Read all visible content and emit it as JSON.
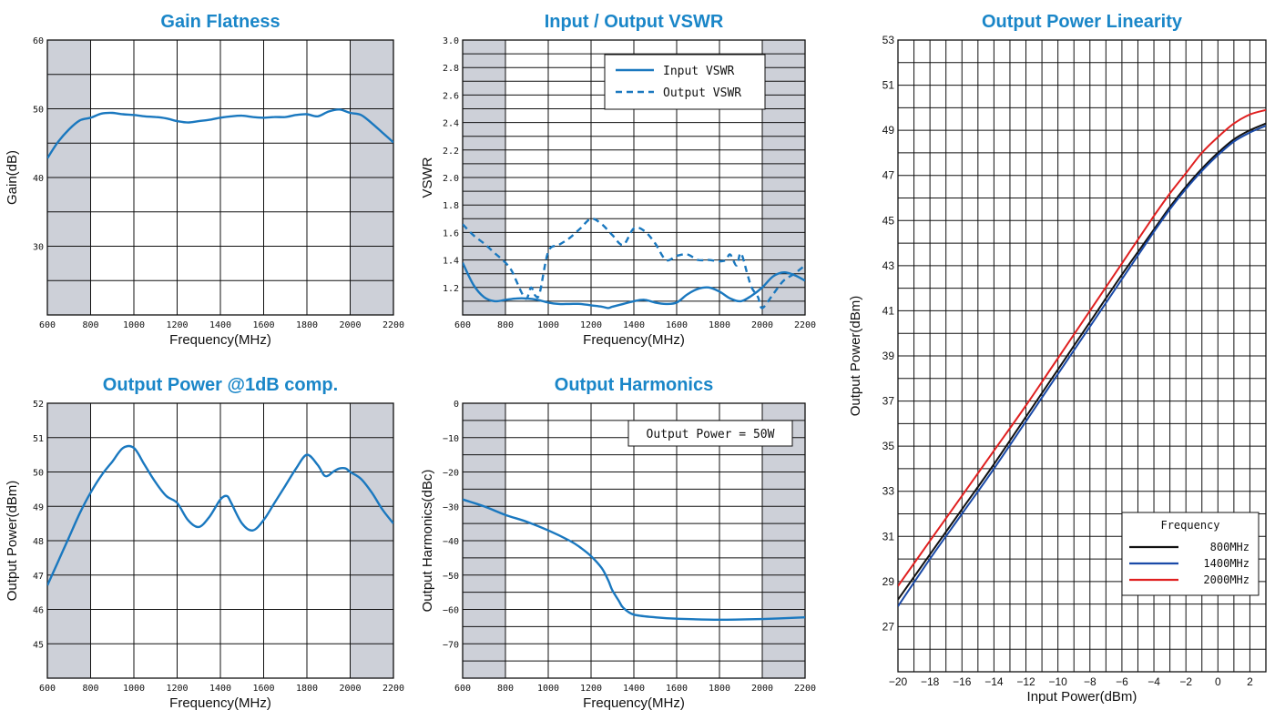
{
  "chart_data": [
    {
      "id": "gain",
      "type": "line",
      "title": "Gain Flatness",
      "xlabel": "Frequency(MHz)",
      "ylabel": "Gain(dB)",
      "xlim": [
        600,
        2200
      ],
      "ylim": [
        20,
        60
      ],
      "xticks": [
        600,
        800,
        1000,
        1200,
        1400,
        1600,
        1800,
        2000,
        2200
      ],
      "yticks": [
        30,
        40,
        50,
        60
      ],
      "shaded": [
        [
          600,
          800
        ],
        [
          2000,
          2200
        ]
      ],
      "series": [
        {
          "style": "solid",
          "color": "#1a78bf",
          "x": [
            600,
            650,
            700,
            750,
            800,
            850,
            900,
            950,
            1000,
            1050,
            1100,
            1150,
            1200,
            1250,
            1300,
            1350,
            1400,
            1450,
            1500,
            1550,
            1600,
            1650,
            1700,
            1750,
            1800,
            1850,
            1900,
            1950,
            2000,
            2050,
            2100,
            2150,
            2200
          ],
          "y": [
            42.8,
            45.2,
            47.0,
            48.3,
            48.7,
            49.3,
            49.4,
            49.2,
            49.1,
            48.9,
            48.8,
            48.6,
            48.2,
            48.0,
            48.2,
            48.4,
            48.7,
            48.9,
            49.0,
            48.8,
            48.7,
            48.8,
            48.8,
            49.1,
            49.2,
            48.9,
            49.6,
            49.9,
            49.4,
            49.1,
            47.9,
            46.5,
            45.1
          ]
        }
      ]
    },
    {
      "id": "vswr",
      "type": "line",
      "title": "Input / Output VSWR",
      "xlabel": "Frequency(MHz)",
      "ylabel": "VSWR",
      "xlim": [
        600,
        2200
      ],
      "ylim": [
        1.0,
        3.0
      ],
      "xticks": [
        600,
        800,
        1000,
        1200,
        1400,
        1600,
        1800,
        2000,
        2200
      ],
      "yticks": [
        1.2,
        1.4,
        1.6,
        1.8,
        2.0,
        2.2,
        2.4,
        2.6,
        2.8,
        3.0
      ],
      "ytick_labels": [
        "1.2",
        "1.4",
        "1.6",
        "1.8",
        "2.0",
        "2.2",
        "2.4",
        "2.6",
        "2.8",
        "3.0"
      ],
      "shaded": [
        [
          600,
          800
        ],
        [
          2000,
          2200
        ]
      ],
      "legend": {
        "position": "top-right",
        "entries": [
          "Input VSWR",
          "Output VSWR"
        ]
      },
      "series": [
        {
          "name": "Input VSWR",
          "style": "solid",
          "color": "#1a78bf",
          "x": [
            600,
            650,
            700,
            750,
            800,
            850,
            900,
            950,
            1000,
            1050,
            1100,
            1150,
            1200,
            1250,
            1280,
            1300,
            1350,
            1400,
            1450,
            1500,
            1550,
            1600,
            1650,
            1700,
            1750,
            1800,
            1850,
            1900,
            1950,
            2000,
            2050,
            2100,
            2150,
            2200
          ],
          "y": [
            1.38,
            1.22,
            1.13,
            1.1,
            1.11,
            1.12,
            1.12,
            1.11,
            1.09,
            1.08,
            1.08,
            1.08,
            1.07,
            1.06,
            1.05,
            1.06,
            1.08,
            1.1,
            1.11,
            1.09,
            1.08,
            1.09,
            1.15,
            1.19,
            1.2,
            1.17,
            1.12,
            1.1,
            1.14,
            1.2,
            1.28,
            1.31,
            1.29,
            1.25
          ]
        },
        {
          "name": "Output VSWR",
          "style": "dashed",
          "color": "#1a78bf",
          "x": [
            600,
            650,
            700,
            750,
            800,
            830,
            850,
            880,
            900,
            920,
            940,
            960,
            1000,
            1050,
            1100,
            1150,
            1200,
            1250,
            1300,
            1350,
            1400,
            1450,
            1500,
            1550,
            1600,
            1650,
            1700,
            1750,
            1800,
            1830,
            1850,
            1880,
            1900,
            1930,
            1950,
            1980,
            2000,
            2050,
            2100,
            2150,
            2200
          ],
          "y": [
            1.66,
            1.58,
            1.52,
            1.45,
            1.38,
            1.32,
            1.25,
            1.15,
            1.12,
            1.2,
            1.14,
            1.16,
            1.46,
            1.51,
            1.56,
            1.63,
            1.7,
            1.66,
            1.58,
            1.51,
            1.63,
            1.61,
            1.52,
            1.4,
            1.43,
            1.44,
            1.4,
            1.4,
            1.39,
            1.4,
            1.44,
            1.36,
            1.45,
            1.3,
            1.2,
            1.13,
            1.05,
            1.15,
            1.25,
            1.3,
            1.36
          ]
        }
      ]
    },
    {
      "id": "p1db",
      "type": "line",
      "title": "Output Power @1dB comp.",
      "xlabel": "Frequency(MHz)",
      "ylabel": "Output Power(dBm)",
      "xlim": [
        600,
        2200
      ],
      "ylim": [
        44,
        52
      ],
      "xticks": [
        600,
        800,
        1000,
        1200,
        1400,
        1600,
        1800,
        2000,
        2200
      ],
      "yticks": [
        45,
        46,
        47,
        48,
        49,
        50,
        51,
        52
      ],
      "shaded": [
        [
          600,
          800
        ],
        [
          2000,
          2200
        ]
      ],
      "series": [
        {
          "style": "solid",
          "color": "#1a78bf",
          "x": [
            600,
            650,
            700,
            750,
            800,
            850,
            900,
            950,
            1000,
            1050,
            1100,
            1150,
            1200,
            1250,
            1300,
            1350,
            1400,
            1430,
            1450,
            1500,
            1550,
            1600,
            1650,
            1700,
            1750,
            1800,
            1850,
            1880,
            1900,
            1920,
            1950,
            1980,
            2000,
            2050,
            2100,
            2150,
            2200
          ],
          "y": [
            46.7,
            47.4,
            48.1,
            48.8,
            49.4,
            49.9,
            50.3,
            50.7,
            50.7,
            50.2,
            49.7,
            49.3,
            49.1,
            48.6,
            48.4,
            48.7,
            49.2,
            49.3,
            49.1,
            48.5,
            48.3,
            48.6,
            49.1,
            49.6,
            50.1,
            50.5,
            50.2,
            49.9,
            49.9,
            50.0,
            50.1,
            50.1,
            50.0,
            49.8,
            49.4,
            48.9,
            48.5
          ]
        }
      ]
    },
    {
      "id": "harmonics",
      "type": "line",
      "title": "Output Harmonics",
      "xlabel": "Frequency(MHz)",
      "ylabel": "Output Harmonics(dBc)",
      "xlim": [
        600,
        2200
      ],
      "ylim": [
        -80,
        0
      ],
      "xticks": [
        600,
        800,
        1000,
        1200,
        1400,
        1600,
        1800,
        2000,
        2200
      ],
      "yticks": [
        0,
        -10,
        -20,
        -30,
        -40,
        -50,
        -60,
        -70
      ],
      "ytick_labels": [
        "0",
        "−10",
        "−20",
        "−30",
        "−40",
        "−50",
        "−60",
        "−70"
      ],
      "shaded": [
        [
          600,
          800
        ],
        [
          2000,
          2200
        ]
      ],
      "annotation": "Output Power = 50W",
      "series": [
        {
          "style": "solid",
          "color": "#1a78bf",
          "x": [
            600,
            700,
            800,
            900,
            1000,
            1100,
            1150,
            1200,
            1250,
            1280,
            1300,
            1330,
            1350,
            1400,
            1500,
            1600,
            1800,
            2000,
            2200
          ],
          "y": [
            -28,
            -30,
            -32.5,
            -34.5,
            -37,
            -40,
            -42,
            -44.5,
            -48,
            -51.5,
            -54.5,
            -57.5,
            -59.5,
            -61.5,
            -62.3,
            -62.7,
            -63,
            -62.8,
            -62.3
          ]
        }
      ]
    },
    {
      "id": "linearity",
      "type": "line",
      "title": "Output Power Linearity",
      "xlabel": "Input Power(dBm)",
      "ylabel": "Output Power(dBm)",
      "xlim": [
        -20,
        3
      ],
      "ylim": [
        25,
        53
      ],
      "xticks": [
        -20,
        -18,
        -16,
        -14,
        -12,
        -10,
        -8,
        -6,
        -4,
        -2,
        0,
        2
      ],
      "xtick_labels": [
        "−20",
        "−18",
        "−16",
        "−14",
        "−12",
        "−10",
        "−8",
        "−6",
        "−4",
        "−2",
        "0",
        "2"
      ],
      "yticks": [
        27,
        29,
        31,
        33,
        35,
        37,
        39,
        41,
        43,
        45,
        47,
        49,
        51,
        53
      ],
      "legend": {
        "title": "Frequency",
        "position": "bottom-right",
        "entries": [
          "800MHz",
          "1400MHz",
          "2000MHz"
        ]
      },
      "series": [
        {
          "name": "800MHz",
          "style": "solid",
          "color": "#111111",
          "x": [
            -20,
            -18,
            -16,
            -14,
            -12,
            -10,
            -8,
            -6,
            -4,
            -3,
            -2,
            -1,
            0,
            1,
            2,
            3
          ],
          "y": [
            28.2,
            30.2,
            32.2,
            34.2,
            36.3,
            38.4,
            40.5,
            42.6,
            44.6,
            45.6,
            46.5,
            47.3,
            48.0,
            48.6,
            49.0,
            49.3
          ]
        },
        {
          "name": "1400MHz",
          "style": "solid",
          "color": "#1a4aa8",
          "x": [
            -20,
            -18,
            -16,
            -14,
            -12,
            -10,
            -8,
            -6,
            -4,
            -3,
            -2,
            -1,
            0,
            1,
            2,
            3
          ],
          "y": [
            27.9,
            30.0,
            32.0,
            34.0,
            36.1,
            38.2,
            40.3,
            42.4,
            44.5,
            45.5,
            46.4,
            47.2,
            47.9,
            48.5,
            48.9,
            49.2
          ]
        },
        {
          "name": "2000MHz",
          "style": "solid",
          "color": "#e02020",
          "x": [
            -20,
            -18,
            -16,
            -14,
            -12,
            -10,
            -8,
            -6,
            -4,
            -3,
            -2,
            -1,
            0,
            1,
            2,
            3
          ],
          "y": [
            28.8,
            30.8,
            32.8,
            34.8,
            36.8,
            38.9,
            41.0,
            43.1,
            45.2,
            46.2,
            47.1,
            48.0,
            48.7,
            49.3,
            49.7,
            49.9
          ]
        }
      ]
    }
  ]
}
